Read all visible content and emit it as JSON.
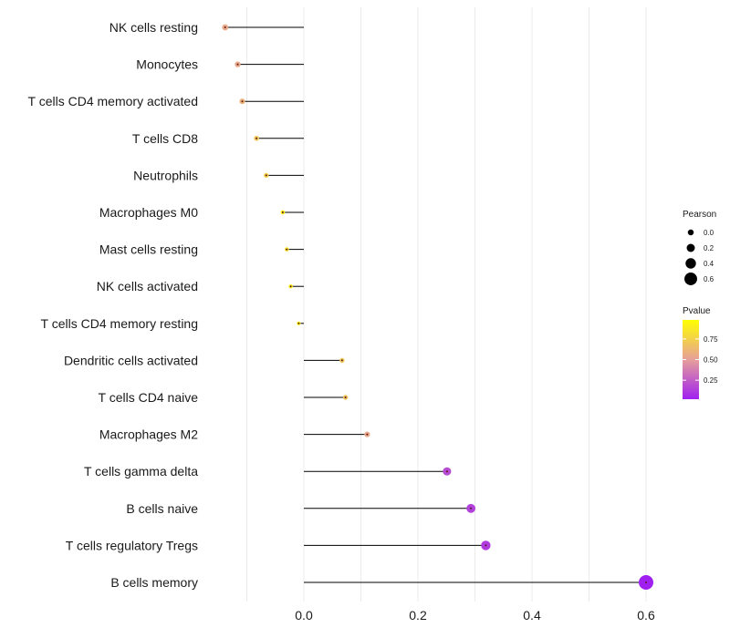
{
  "chart_data": {
    "type": "lollipop",
    "title": "",
    "xlabel": "",
    "ylabel": "",
    "xlim": [
      -0.14,
      0.62
    ],
    "x_ticks": [
      0.0,
      0.2,
      0.4,
      0.6
    ],
    "x_tick_labels": [
      "0.0",
      "0.2",
      "0.4",
      "0.6"
    ],
    "grid": true,
    "categories": [
      "NK cells resting",
      "Monocytes",
      "T cells CD4 memory activated",
      "T cells CD8",
      "Neutrophils",
      "Macrophages M0",
      "Mast cells resting",
      "NK cells activated",
      "T cells CD4 memory resting",
      "Dendritic cells activated",
      "T cells CD4 naive",
      "Macrophages M2",
      "T cells gamma delta",
      "B cells naive",
      "T cells regulatory  Tregs",
      "B cells memory"
    ],
    "pearson": [
      -0.138,
      -0.116,
      -0.108,
      -0.083,
      -0.066,
      -0.037,
      -0.03,
      -0.023,
      -0.009,
      0.067,
      0.073,
      0.111,
      0.251,
      0.293,
      0.319,
      0.6
    ],
    "pvalue": [
      0.55,
      0.55,
      0.6,
      0.7,
      0.75,
      0.9,
      0.85,
      0.9,
      0.95,
      0.7,
      0.68,
      0.55,
      0.18,
      0.14,
      0.12,
      0.02
    ],
    "legend_size": {
      "title": "Pearson",
      "values": [
        0.0,
        0.2,
        0.4,
        0.6
      ],
      "labels": [
        "0.0",
        "0.2",
        "0.4",
        "0.6"
      ]
    },
    "legend_color": {
      "title": "Pvalue",
      "range": [
        0.02,
        0.98
      ],
      "ticks": [
        0.25,
        0.5,
        0.75
      ],
      "tick_labels": [
        "0.25",
        "0.50",
        "0.75"
      ],
      "low_color": "#a020f0",
      "mid_color": "#e69f9a",
      "high_color": "#ffff00"
    },
    "legend_position": "right"
  }
}
